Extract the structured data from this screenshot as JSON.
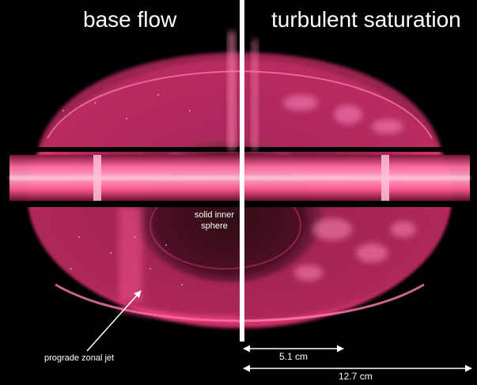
{
  "titles": {
    "left": "base flow",
    "right": "turbulent saturation"
  },
  "annotations": {
    "inner_sphere": [
      "solid inner",
      "sphere"
    ],
    "zonal_jet": "prograde zonal jet"
  },
  "scale_bars": {
    "small": "5.1 cm",
    "large": "12.7 cm"
  },
  "colors": {
    "background": "#000000",
    "fluid_glow": "#ff3a7a",
    "divider": "#ffffff"
  }
}
